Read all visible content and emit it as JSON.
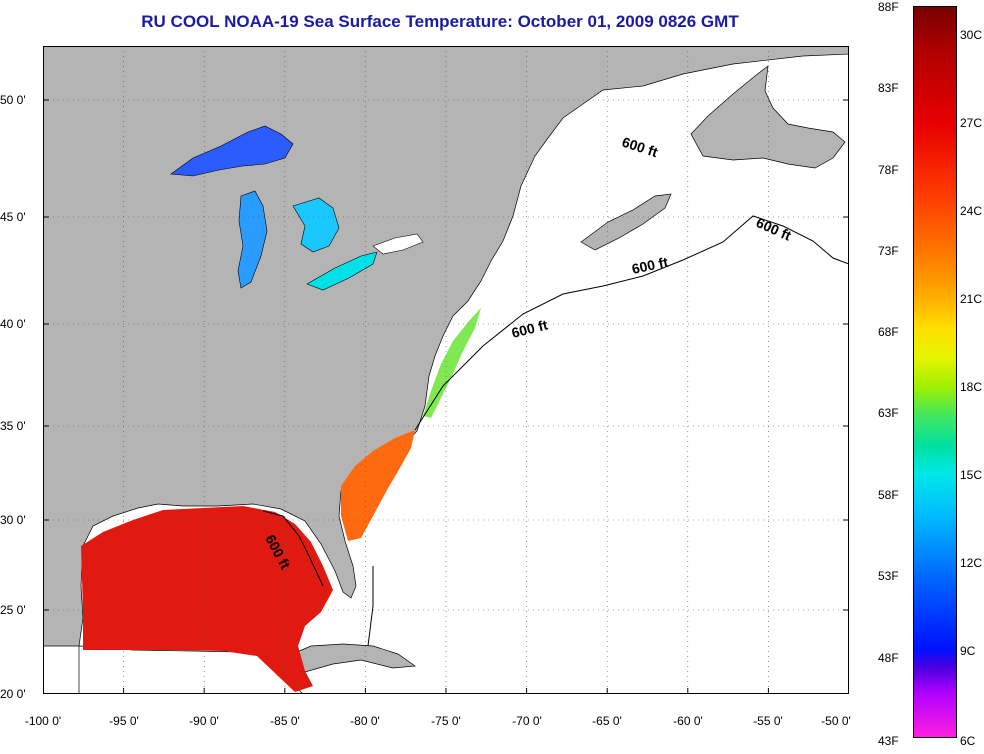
{
  "title": "RU COOL  NOAA-19  Sea Surface Temperature:  October 01, 2009 0826 GMT",
  "latitude_labels": [
    "50 0'",
    "45 0'",
    "40 0'",
    "35 0'",
    "30 0'",
    "25 0'",
    "20 0'"
  ],
  "longitude_labels": [
    "-100 0'",
    "-95 0'",
    "-90 0'",
    "-85 0'",
    "-80 0'",
    "-75 0'",
    "-70 0'",
    "-65 0'",
    "-60 0'",
    "-55 0'",
    "-50 0'"
  ],
  "isobath_label": "600 ft",
  "colorbar": {
    "fahrenheit_labels": [
      "88F",
      "83F",
      "78F",
      "73F",
      "68F",
      "63F",
      "58F",
      "53F",
      "48F",
      "43F"
    ],
    "celsius_labels": [
      "30C",
      "27C",
      "24C",
      "21C",
      "18C",
      "15C",
      "12C",
      "9C",
      "6C"
    ]
  },
  "colors": {
    "land": "#b4b4b4",
    "ocean": "#ffffff",
    "title": "#1a1aa8",
    "warm": "#e01a10",
    "gulfstream": "#ff6a10"
  }
}
